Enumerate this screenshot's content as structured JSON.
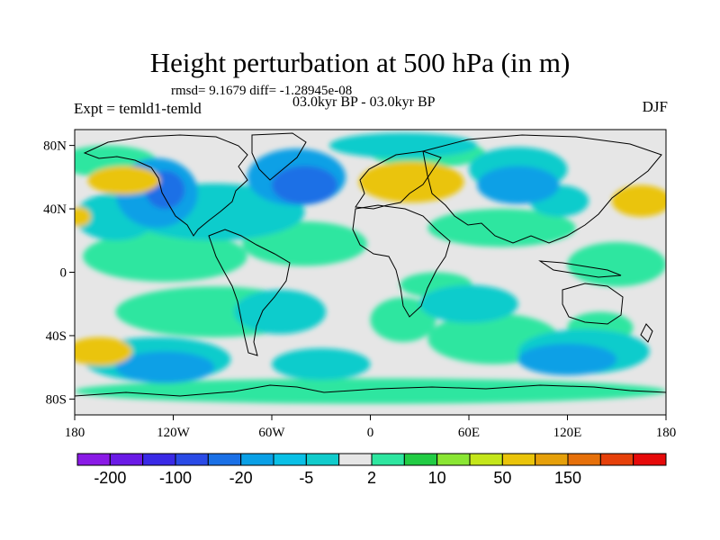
{
  "title": "Height perturbation at 500 hPa (in m)",
  "stats": "rmsd= 9.1679 diff= -1.28945e-08",
  "experiment": "Expt = temld1-temld",
  "period": "03.0kyr BP - 03.0kyr BP",
  "season": "DJF",
  "map": {
    "lon_range": [
      -180,
      180
    ],
    "lat_range": [
      -90,
      90
    ],
    "lon_ticks": [
      {
        "value": -180,
        "label": "180"
      },
      {
        "value": -120,
        "label": "120W"
      },
      {
        "value": -60,
        "label": "60W"
      },
      {
        "value": 0,
        "label": "0"
      },
      {
        "value": 60,
        "label": "60E"
      },
      {
        "value": 120,
        "label": "120E"
      },
      {
        "value": 180,
        "label": "180"
      }
    ],
    "lat_ticks": [
      {
        "value": 80,
        "label": "80N"
      },
      {
        "value": 40,
        "label": "40N"
      },
      {
        "value": 0,
        "label": "0"
      },
      {
        "value": -40,
        "label": "40S"
      },
      {
        "value": -80,
        "label": "80S"
      }
    ],
    "background_color": "#e6e6e6",
    "fields": [
      {
        "color": "#2ee6a0",
        "lon": -125,
        "lat": 10,
        "rx": 50,
        "ry": 16
      },
      {
        "color": "#2ee6a0",
        "lon": -95,
        "lat": -25,
        "rx": 60,
        "ry": 16
      },
      {
        "color": "#2ee6a0",
        "lon": -40,
        "lat": 18,
        "rx": 38,
        "ry": 14
      },
      {
        "color": "#2ee6a0",
        "lon": -160,
        "lat": 70,
        "rx": 30,
        "ry": 10
      },
      {
        "color": "#2ee6a0",
        "lon": 20,
        "lat": -30,
        "rx": 20,
        "ry": 14
      },
      {
        "color": "#2ee6a0",
        "lon": 75,
        "lat": -42,
        "rx": 40,
        "ry": 16
      },
      {
        "color": "#2ee6a0",
        "lon": 80,
        "lat": 28,
        "rx": 45,
        "ry": 12
      },
      {
        "color": "#2ee6a0",
        "lon": 140,
        "lat": -35,
        "rx": 20,
        "ry": 10
      },
      {
        "color": "#2ee6a0",
        "lon": 35,
        "lat": 75,
        "rx": 35,
        "ry": 9
      },
      {
        "color": "#2ee6a0",
        "lon": 0,
        "lat": -75,
        "rx": 180,
        "ry": 8
      },
      {
        "color": "#2ee6a0",
        "lon": 150,
        "lat": 5,
        "rx": 30,
        "ry": 14
      },
      {
        "color": "#2ee6a0",
        "lon": 40,
        "lat": -8,
        "rx": 22,
        "ry": 8
      },
      {
        "color": "#11cccc",
        "lon": -95,
        "lat": 38,
        "rx": 55,
        "ry": 18
      },
      {
        "color": "#11cccc",
        "lon": 20,
        "lat": 80,
        "rx": 45,
        "ry": 8
      },
      {
        "color": "#11cccc",
        "lon": 90,
        "lat": 65,
        "rx": 30,
        "ry": 14
      },
      {
        "color": "#11cccc",
        "lon": 115,
        "lat": 45,
        "rx": 18,
        "ry": 10
      },
      {
        "color": "#11cccc",
        "lon": -55,
        "lat": -25,
        "rx": 28,
        "ry": 14
      },
      {
        "color": "#11cccc",
        "lon": 60,
        "lat": -20,
        "rx": 30,
        "ry": 12
      },
      {
        "color": "#11cccc",
        "lon": 130,
        "lat": -50,
        "rx": 40,
        "ry": 14
      },
      {
        "color": "#11cccc",
        "lon": -130,
        "lat": -55,
        "rx": 45,
        "ry": 14
      },
      {
        "color": "#11cccc",
        "lon": -30,
        "lat": -58,
        "rx": 30,
        "ry": 10
      },
      {
        "color": "#11cccc",
        "lon": -155,
        "lat": 35,
        "rx": 25,
        "ry": 15
      },
      {
        "color": "#0aa0e6",
        "lon": -130,
        "lat": 50,
        "rx": 25,
        "ry": 22
      },
      {
        "color": "#0aa0e6",
        "lon": 90,
        "lat": 55,
        "rx": 25,
        "ry": 12
      },
      {
        "color": "#0aa0e6",
        "lon": -125,
        "lat": -60,
        "rx": 30,
        "ry": 10
      },
      {
        "color": "#0aa0e6",
        "lon": 120,
        "lat": -55,
        "rx": 30,
        "ry": 10
      },
      {
        "color": "#0aa0e6",
        "lon": -45,
        "lat": 60,
        "rx": 30,
        "ry": 18
      },
      {
        "color": "#1a70e6",
        "lon": -40,
        "lat": 55,
        "rx": 20,
        "ry": 12
      },
      {
        "color": "#1a70e6",
        "lon": -125,
        "lat": 52,
        "rx": 12,
        "ry": 12
      },
      {
        "color": "#eac40a",
        "lon": 25,
        "lat": 57,
        "rx": 32,
        "ry": 13
      },
      {
        "color": "#eac40a",
        "lon": -150,
        "lat": 58,
        "rx": 22,
        "ry": 9
      },
      {
        "color": "#eac40a",
        "lon": 165,
        "lat": 45,
        "rx": 18,
        "ry": 10
      },
      {
        "color": "#eac40a",
        "lon": -165,
        "lat": -50,
        "rx": 20,
        "ry": 9
      },
      {
        "color": "#eac40a",
        "lon": -177,
        "lat": 35,
        "rx": 7,
        "ry": 6
      }
    ],
    "coastline_color": "#000000"
  },
  "colorbar": {
    "colors": [
      "#8a1ae6",
      "#6a1ae6",
      "#3a2ae6",
      "#2a4ae6",
      "#1a70e6",
      "#0aa0e6",
      "#0ac0e6",
      "#11cccc",
      "#e6e6e6",
      "#2ee6a0",
      "#22cc44",
      "#8ae633",
      "#c4e61a",
      "#eac40a",
      "#e6a00a",
      "#e6700a",
      "#e6400a",
      "#e60a0a"
    ],
    "labels": [
      {
        "after_box": 1,
        "text": "-200"
      },
      {
        "after_box": 3,
        "text": "-100"
      },
      {
        "after_box": 5,
        "text": "-20"
      },
      {
        "after_box": 7,
        "text": "-5"
      },
      {
        "after_box": 9,
        "text": "2"
      },
      {
        "after_box": 11,
        "text": "10"
      },
      {
        "after_box": 13,
        "text": "50"
      },
      {
        "after_box": 15,
        "text": "150"
      }
    ]
  }
}
